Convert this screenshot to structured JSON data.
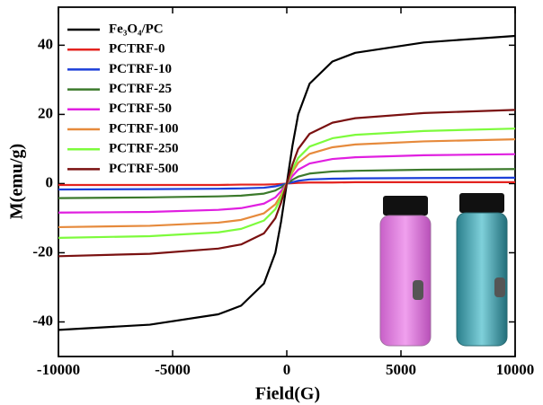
{
  "chart_data": {
    "type": "line",
    "xlabel": "Field(G)",
    "ylabel": "M(emu/g)",
    "x": [
      -10000,
      -6000,
      -3000,
      -2000,
      -1000,
      -500,
      -250,
      0,
      250,
      500,
      1000,
      2000,
      3000,
      6000,
      10000
    ],
    "series": [
      {
        "name": "Fe₃O₄/PC",
        "color": "#000000",
        "values": [
          -42.3,
          -40.8,
          -37.8,
          -35.3,
          -28.9,
          -20,
          -11,
          0,
          11,
          20,
          28.9,
          35.3,
          37.8,
          40.8,
          42.7
        ]
      },
      {
        "name": "PCTRF-0",
        "color": "#e3231f",
        "values": [
          -0.4,
          -0.4,
          -0.4,
          -0.3,
          -0.3,
          -0.2,
          -0.1,
          0,
          0.1,
          0.2,
          0.3,
          0.3,
          0.4,
          0.4,
          0.4
        ]
      },
      {
        "name": "PCTRF-10",
        "color": "#1c3fd8",
        "values": [
          -1.7,
          -1.6,
          -1.5,
          -1.4,
          -1.2,
          -0.8,
          -0.4,
          0,
          0.4,
          0.8,
          1.2,
          1.4,
          1.5,
          1.6,
          1.7
        ]
      },
      {
        "name": "PCTRF-25",
        "color": "#3c7a2c",
        "values": [
          -4.2,
          -4,
          -3.7,
          -3.5,
          -2.9,
          -2,
          -1.1,
          0,
          1.1,
          2,
          2.9,
          3.5,
          3.7,
          4,
          4.2
        ]
      },
      {
        "name": "PCTRF-50",
        "color": "#e01fe0",
        "values": [
          -8.4,
          -8.2,
          -7.6,
          -7.1,
          -5.8,
          -4,
          -2.2,
          0,
          2.2,
          4,
          5.8,
          7.1,
          7.6,
          8.2,
          8.5
        ]
      },
      {
        "name": "PCTRF-100",
        "color": "#e68a3c",
        "values": [
          -12.6,
          -12.2,
          -11.3,
          -10.5,
          -8.6,
          -6,
          -3.3,
          0,
          3.3,
          6,
          8.6,
          10.5,
          11.3,
          12.2,
          12.8
        ]
      },
      {
        "name": "PCTRF-250",
        "color": "#7dfb3c",
        "values": [
          -15.7,
          -15.2,
          -14.1,
          -13.1,
          -10.7,
          -7.4,
          -4.1,
          0,
          4.1,
          7.4,
          10.7,
          13.1,
          14.1,
          15.2,
          15.9
        ]
      },
      {
        "name": "PCTRF-500",
        "color": "#7a1111",
        "values": [
          -21,
          -20.3,
          -18.8,
          -17.6,
          -14.4,
          -10,
          -5.5,
          0,
          5.5,
          10,
          14.4,
          17.6,
          18.9,
          20.4,
          21.3
        ]
      }
    ],
    "xlim": [
      -10000,
      10000
    ],
    "xticks": [
      -10000,
      -5000,
      0,
      5000,
      10000
    ],
    "ylim": [
      -50,
      51
    ],
    "yticks": [
      -40,
      -20,
      0,
      20,
      40
    ],
    "legend": "upper left"
  }
}
